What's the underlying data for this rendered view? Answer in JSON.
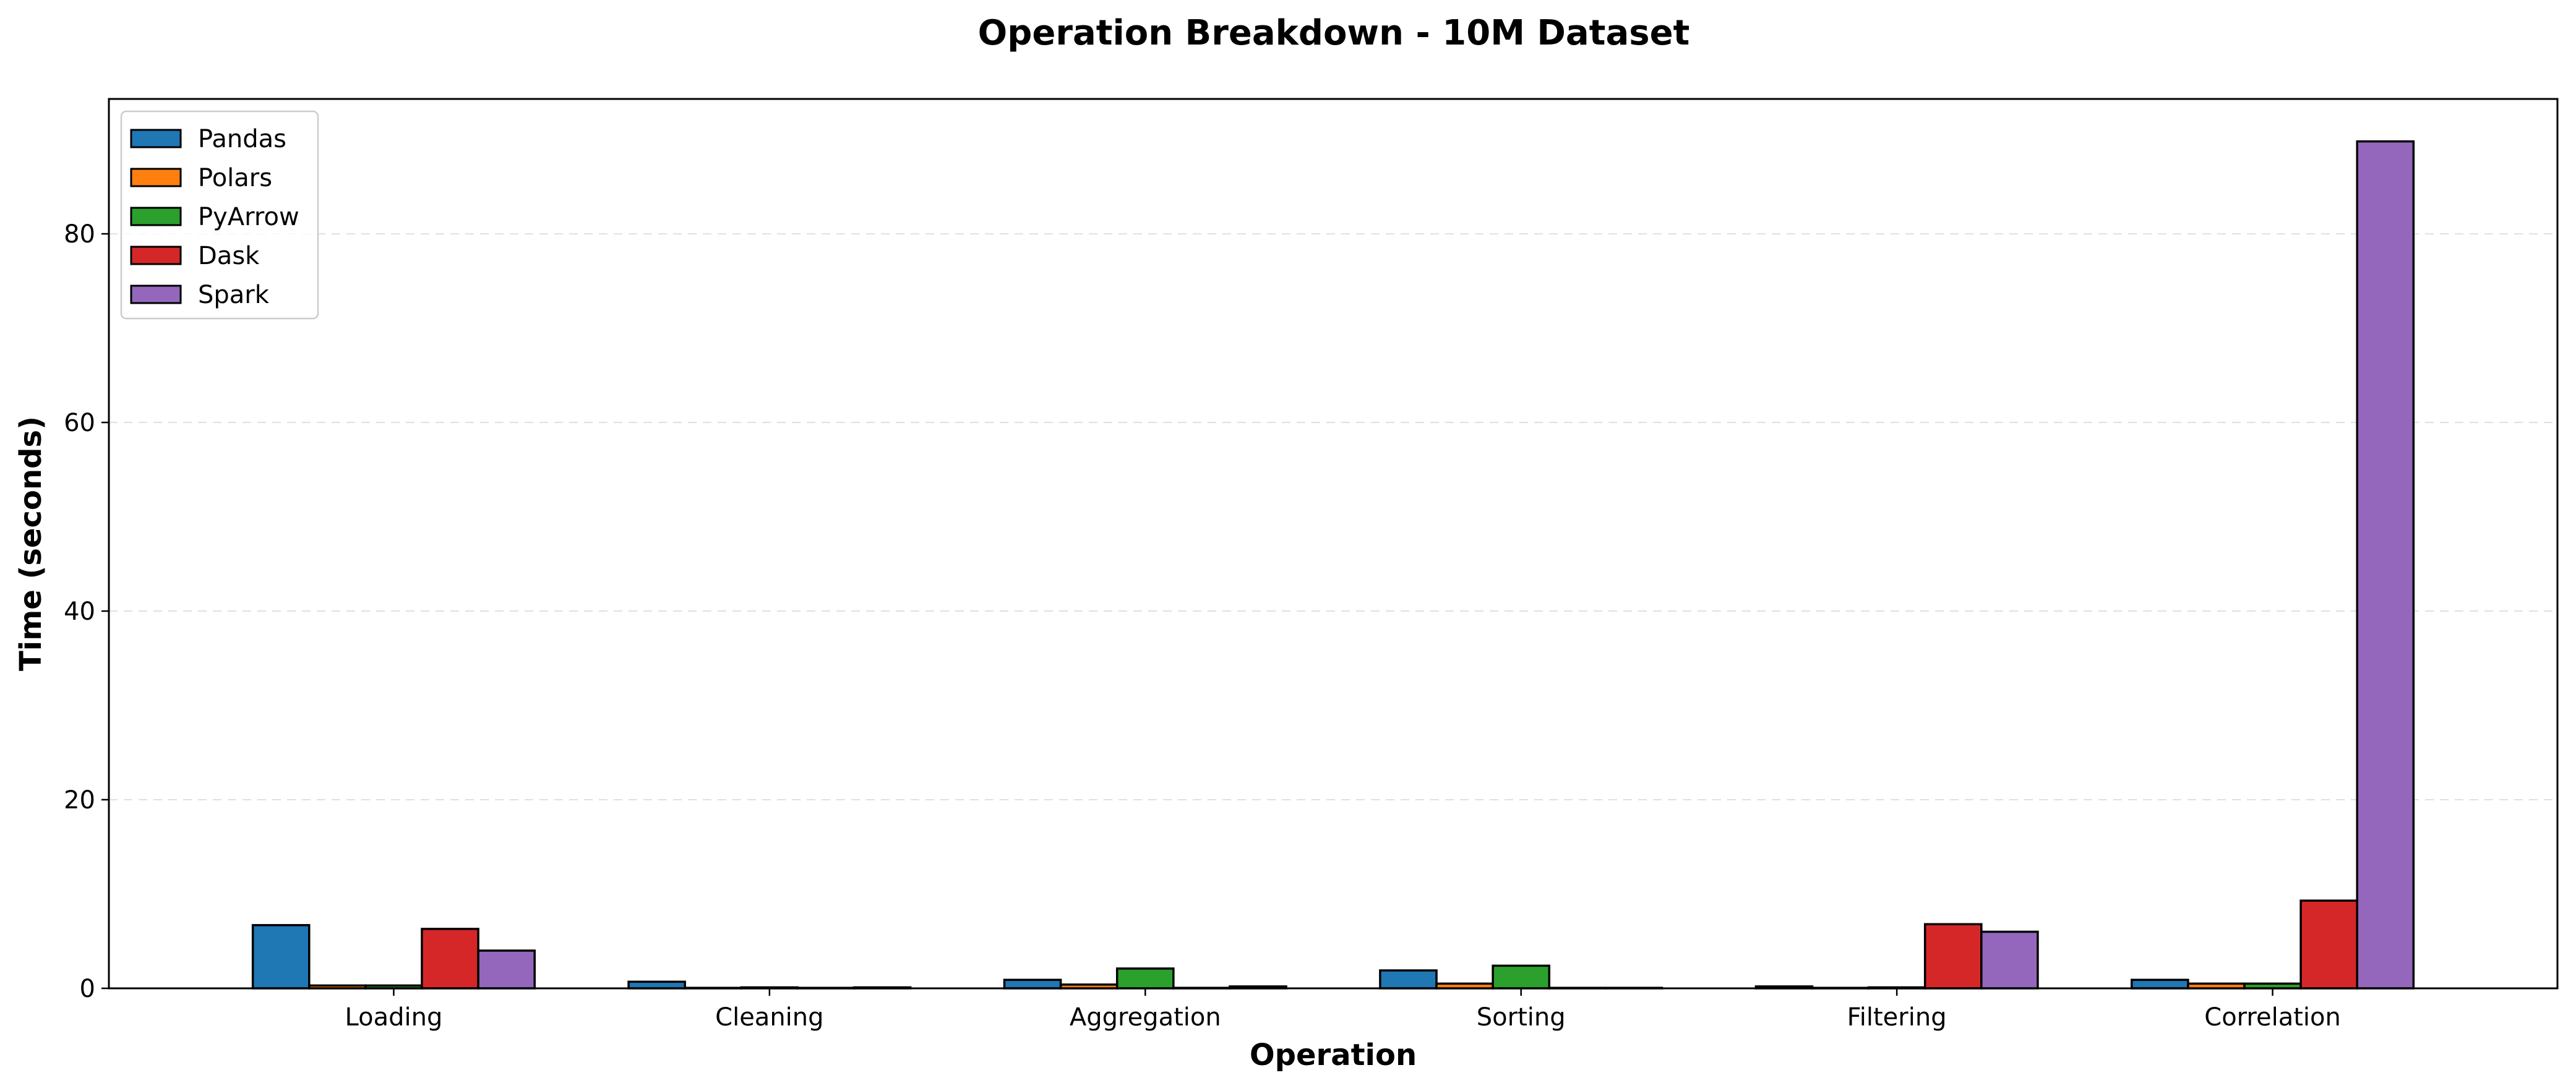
{
  "chart_data": {
    "type": "bar",
    "title": "Operation Breakdown - 10M Dataset",
    "xlabel": "Operation",
    "ylabel": "Time (seconds)",
    "categories": [
      "Loading",
      "Cleaning",
      "Aggregation",
      "Sorting",
      "Filtering",
      "Correlation"
    ],
    "series": [
      {
        "name": "Pandas",
        "color": "#1f77b4",
        "values": [
          6.7,
          0.7,
          0.9,
          1.9,
          0.2,
          0.9
        ]
      },
      {
        "name": "Polars",
        "color": "#ff7f0e",
        "values": [
          0.3,
          0.05,
          0.4,
          0.5,
          0.05,
          0.5
        ]
      },
      {
        "name": "PyArrow",
        "color": "#2ca02c",
        "values": [
          0.3,
          0.1,
          2.1,
          2.4,
          0.1,
          0.5
        ]
      },
      {
        "name": "Dask",
        "color": "#d62728",
        "values": [
          6.3,
          0.05,
          0.05,
          0.05,
          6.8,
          9.3
        ]
      },
      {
        "name": "Spark",
        "color": "#9467bd",
        "values": [
          4.0,
          0.1,
          0.2,
          0.05,
          6.0,
          89.8
        ]
      }
    ],
    "ylim": [
      0,
      94.3
    ],
    "yticks": [
      0,
      20,
      40,
      60,
      80
    ],
    "grid": "y-dashed",
    "legend_position": "top-left"
  }
}
